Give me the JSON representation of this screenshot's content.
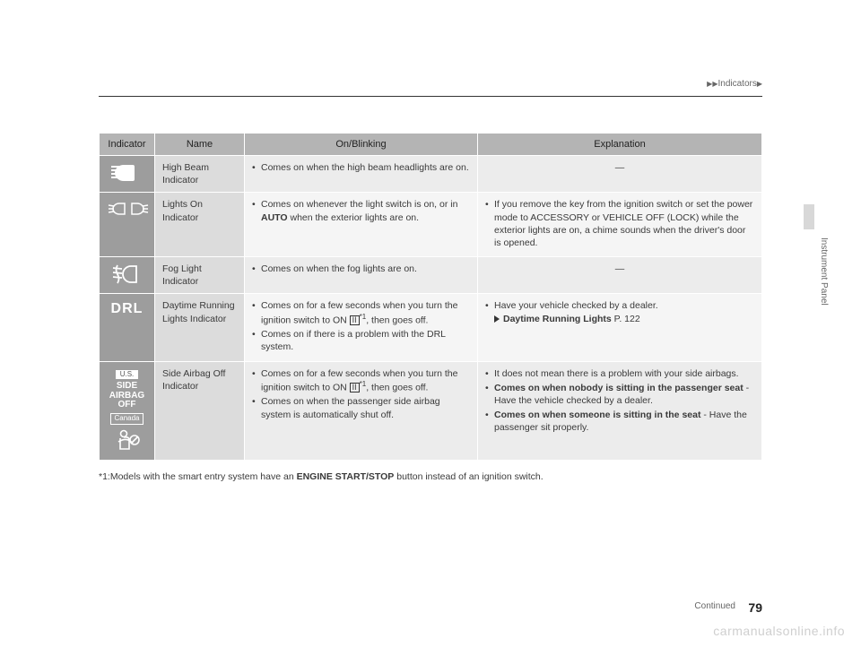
{
  "breadcrumb": {
    "tri1": "▶",
    "tri2": "▶",
    "label": "Indicators",
    "tri3": "▶"
  },
  "headers": {
    "indicator": "Indicator",
    "name": "Name",
    "on": "On/Blinking",
    "exp": "Explanation"
  },
  "rows": [
    {
      "name": "High Beam Indicator",
      "on": [
        "Comes on when the high beam headlights are on."
      ],
      "exp_dash": "—"
    },
    {
      "name": "Lights On Indicator",
      "on_html": "Comes on whenever the light switch is on, or in <span class=\"bold\">AUTO</span> when the exterior lights are on.",
      "exp": [
        "If you remove the key from the ignition switch or set the power mode to ACCESSORY or VEHICLE OFF (LOCK) while the exterior lights are on, a chime sounds when the driver's door is opened."
      ]
    },
    {
      "name": "Fog Light Indicator",
      "on": [
        "Comes on when the fog lights are on."
      ],
      "exp_dash": "—"
    },
    {
      "name": "Daytime Running Lights Indicator",
      "on_items": [
        "Comes on for a few seconds when you turn the ignition switch to ON <span class=\"boxed-II\">II</span><span class=\"sup1\">*1</span>, then goes off.",
        "Comes on if there is a problem with the DRL system."
      ],
      "exp_items": [
        "Have your vehicle checked by a dealer.<br><span class=\"ref-arrow\"></span><span class=\"bold\">Daytime Running Lights</span> P. 122"
      ]
    },
    {
      "name": "Side Airbag Off Indicator",
      "on_items": [
        "Comes on for a few seconds when you turn the ignition switch to ON <span class=\"boxed-II\">II</span><span class=\"sup1\">*1</span>, then goes off.",
        "Comes on when the passenger side airbag system is automatically shut off."
      ],
      "exp_items": [
        "It does not mean there is a problem with your side airbags.",
        "<span class=\"bold\">Comes on when nobody is sitting in the passenger seat</span> - Have the vehicle checked by a dealer.",
        "<span class=\"bold\">Comes on when someone is sitting in the seat</span> - Have the passenger sit properly."
      ]
    }
  ],
  "footnote": "*1:Models with the smart entry system have an <span class=\"bold\">ENGINE START/STOP</span> button instead of an ignition switch.",
  "side_tab": "Instrument Panel",
  "continued": "Continued",
  "page_number": "79",
  "watermark": "carmanualsonline.info",
  "icons": {
    "drl_text": "DRL",
    "side_text1": "SIDE",
    "side_text2": "AIRBAG",
    "side_text3": "OFF",
    "us_label": "U.S.",
    "canada_label": "Canada"
  },
  "colors": {
    "header_bg": "#b4b4b4",
    "icon_bg": "#9d9d9d",
    "name_bg": "#dcdcdc",
    "row_odd": "#ececec",
    "row_even": "#f5f5f5"
  }
}
